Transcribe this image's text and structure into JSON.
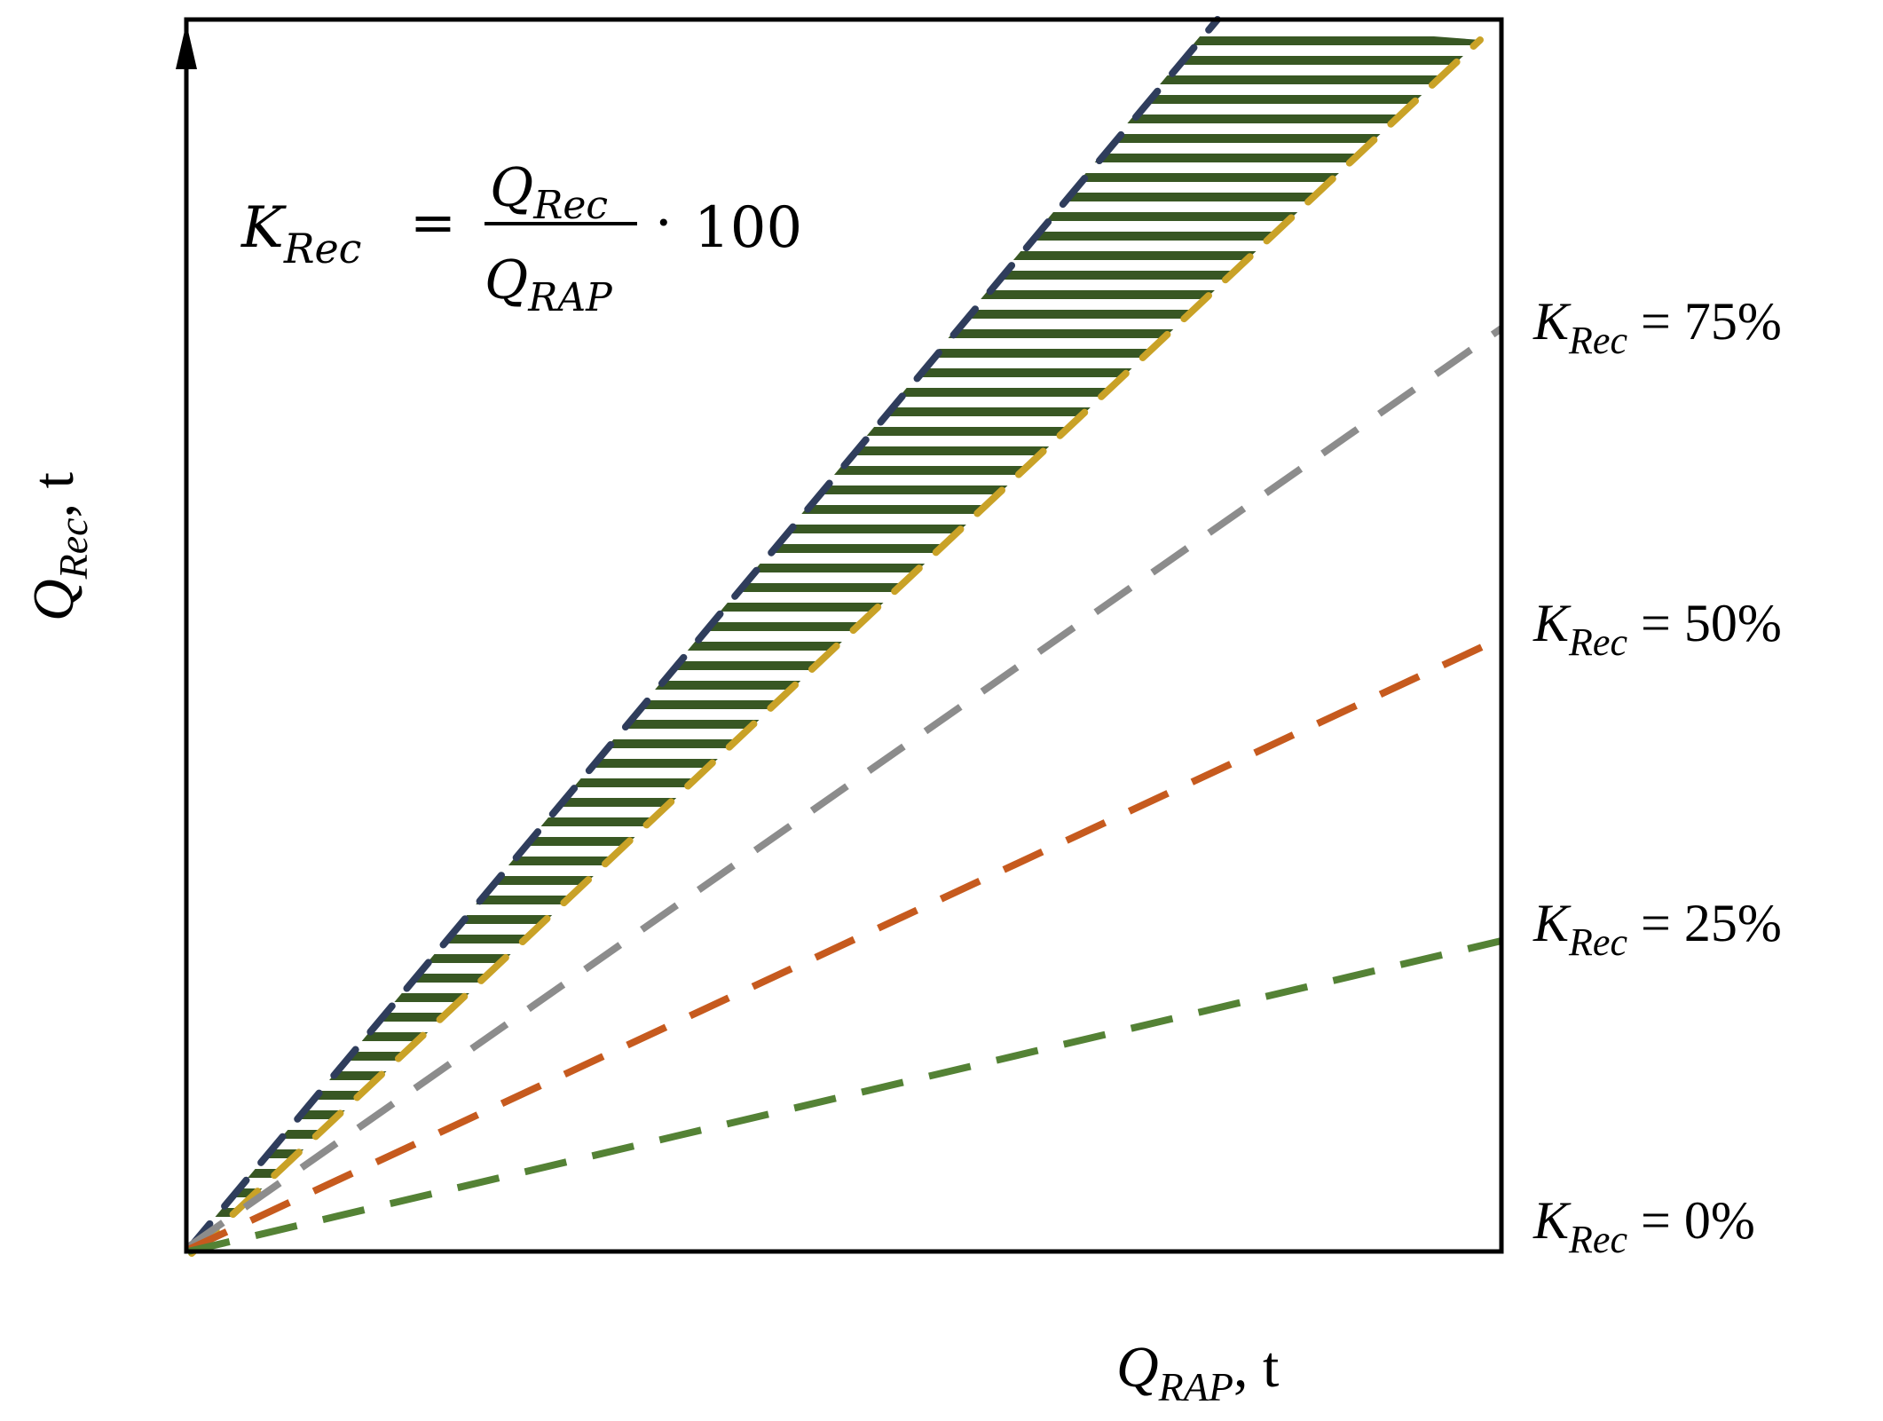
{
  "axes": {
    "x_label": {
      "symbol": "Q",
      "subscript": "RAP",
      "unit": ", t"
    },
    "y_label": {
      "symbol": "Q",
      "subscript": "Rec",
      "unit": ", t"
    }
  },
  "formula": {
    "lhs_symbol": "K",
    "lhs_subscript": "Rec",
    "equals": "=",
    "num_symbol": "Q",
    "num_subscript": "Rec",
    "den_symbol": "Q",
    "den_subscript": "RAP",
    "dot": "·",
    "factor": "100"
  },
  "lines": [
    {
      "symbol": "K",
      "subscript": "Rec",
      "eq": " = ",
      "value": "75%",
      "color": "#8c8c8c"
    },
    {
      "symbol": "K",
      "subscript": "Rec",
      "eq": " = ",
      "value": "50%",
      "color": "#c65a1e"
    },
    {
      "symbol": "K",
      "subscript": "Rec",
      "eq": " = ",
      "value": "25%",
      "color": "#548235"
    },
    {
      "symbol": "K",
      "subscript": "Rec",
      "eq": " = ",
      "value": "0%",
      "color": "#548235"
    }
  ],
  "band": {
    "upper_color": "#2f3d5c",
    "lower_color": "#c9a227",
    "hatch_color": "#385723"
  }
}
